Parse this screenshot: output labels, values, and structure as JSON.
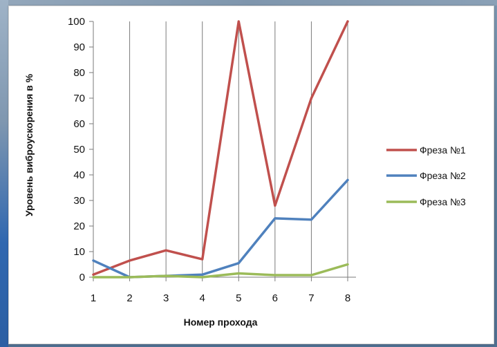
{
  "chart_data": {
    "type": "line",
    "xlabel": "Номер  прохода",
    "ylabel": "Уровень виброускорения в %",
    "x": [
      1,
      2,
      3,
      4,
      5,
      6,
      7,
      8
    ],
    "ylim": [
      0,
      100
    ],
    "y_ticks": [
      "0",
      "10",
      "20",
      "30",
      "40",
      "50",
      "60",
      "70",
      "80",
      "90",
      "100"
    ],
    "grid": "vertical lines at each x",
    "legend_position": "right",
    "series": [
      {
        "name": "Фреза №1",
        "color": "#c0504d",
        "values": [
          1,
          6.5,
          10.5,
          7,
          100,
          28,
          70,
          100
        ]
      },
      {
        "name": "Фреза №2",
        "color": "#4f81bd",
        "values": [
          6.5,
          0,
          0.5,
          1,
          5.5,
          23,
          22.5,
          38
        ]
      },
      {
        "name": "Фреза №3",
        "color": "#9bbb59",
        "values": [
          0,
          0,
          0.5,
          0,
          1.5,
          0.8,
          0.8,
          5
        ]
      }
    ]
  }
}
